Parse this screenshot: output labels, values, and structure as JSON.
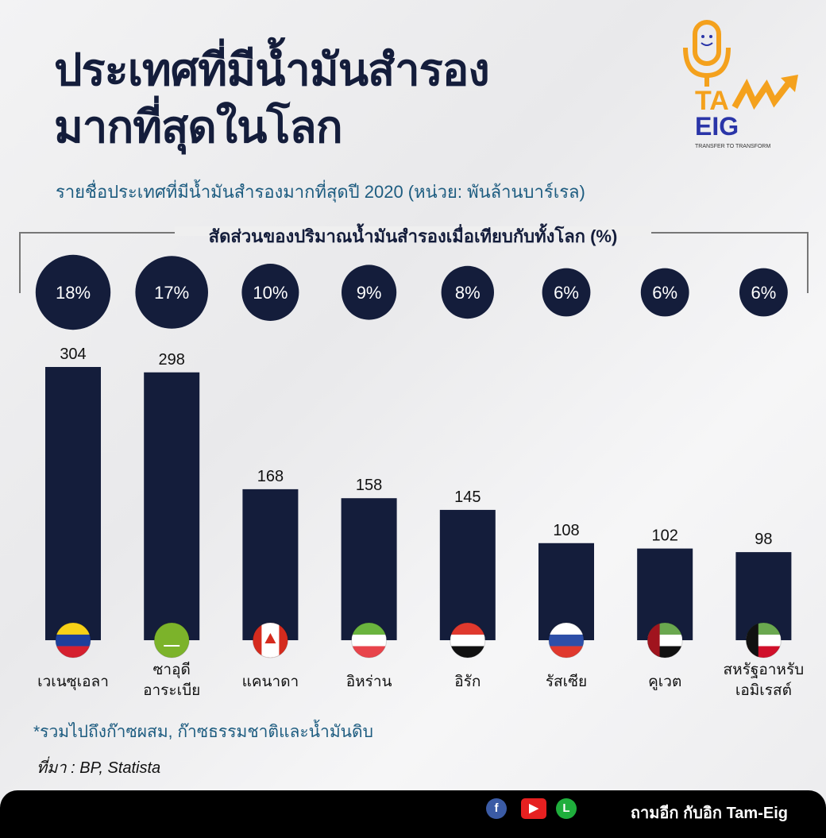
{
  "title_line1": "ประเทศที่มีน้ำมันสำรอง",
  "title_line2": "มากที่สุดในโลก",
  "logo": {
    "text_top": "TAM",
    "text_bottom": "EIG",
    "tagline": "TRANSFER TO TRANSFORM",
    "colors": {
      "orange": "#f4a11d",
      "blue": "#2a35a8"
    }
  },
  "footnote": "*รวมไปถึงก๊าซผสม, ก๊าซธรรมชาติและน้ำมันดิบ",
  "source": "ที่มา : BP, Statista",
  "footer": {
    "text": "ถามอีก กับอิก Tam-Eig",
    "icons": [
      "facebook-icon",
      "youtube-icon",
      "line-icon"
    ]
  },
  "chart_data": {
    "type": "bar",
    "title": "รายชื่อประเทศที่มีน้ำมันสำรองมากที่สุดปี 2020 (หน่วย: พันล้านบาร์เรล)",
    "share_title": "สัดส่วนของปริมาณน้ำมันสำรองเมื่อเทียบกับทั้งโลก (%)",
    "categories": [
      "เวเนซุเอลา",
      [
        "ซาอุดี",
        "อาระเบีย"
      ],
      "แคนาดา",
      "อิหร่าน",
      "อิรัก",
      "รัสเซีย",
      "คูเวต",
      [
        "สหรัฐอาหรับ",
        "เอมิเรสต์"
      ]
    ],
    "values": [
      304,
      298,
      168,
      158,
      145,
      108,
      102,
      98
    ],
    "share_percent": [
      "18%",
      "17%",
      "10%",
      "9%",
      "8%",
      "6%",
      "6%",
      "6%"
    ],
    "share_values": [
      18,
      17,
      10,
      9,
      8,
      6,
      6,
      6
    ],
    "flags": [
      "venezuela",
      "saudi-arabia",
      "canada",
      "iran",
      "iraq",
      "russia",
      "uae",
      "kuwait"
    ],
    "ylim": [
      0,
      304
    ],
    "grid": false,
    "colors": {
      "bar": "#141d3b",
      "circle": "#141d3b"
    }
  }
}
